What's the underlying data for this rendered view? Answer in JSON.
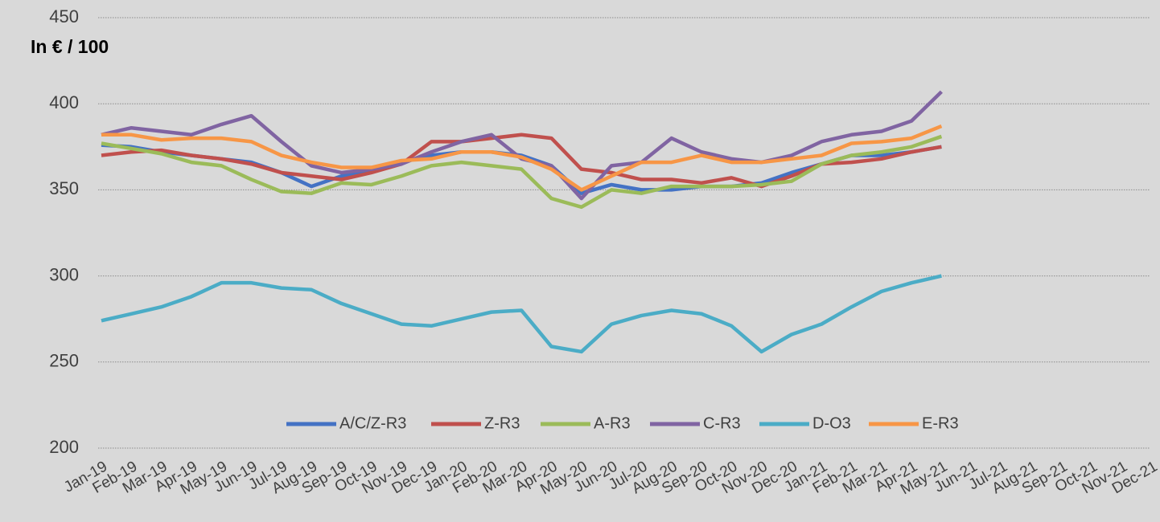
{
  "chart_data": {
    "type": "line",
    "y_label": "In € / 100",
    "categories": [
      "Jan-19",
      "Feb-19",
      "Mar-19",
      "Apr-19",
      "May-19",
      "Jun-19",
      "Jul-19",
      "Aug-19",
      "Sep-19",
      "Oct-19",
      "Nov-19",
      "Dec-19",
      "Jan-20",
      "Feb-20",
      "Mar-20",
      "Apr-20",
      "May-20",
      "Jun-20",
      "Jul-20",
      "Aug-20",
      "Sep-20",
      "Oct-20",
      "Nov-20",
      "Dec-20",
      "Jan-21",
      "Feb-21",
      "Mar-21",
      "Apr-21",
      "May-21",
      "Jun-21",
      "Jul-21",
      "Aug-21",
      "Sep-21",
      "Oct-21",
      "Nov-21",
      "Dec-21"
    ],
    "series": [
      {
        "name": "A/C/Z-R3",
        "color": "#4472c4",
        "values": [
          376,
          375,
          372,
          370,
          368,
          366,
          360,
          352,
          358,
          362,
          366,
          370,
          372,
          372,
          370,
          364,
          348,
          353,
          350,
          350,
          352,
          352,
          354,
          360,
          365,
          370,
          370,
          372,
          375,
          null,
          null,
          null,
          null,
          null,
          null,
          null
        ]
      },
      {
        "name": "Z-R3",
        "color": "#c0504d",
        "values": [
          370,
          372,
          373,
          370,
          368,
          365,
          360,
          358,
          356,
          360,
          365,
          378,
          378,
          380,
          382,
          380,
          362,
          360,
          356,
          356,
          354,
          357,
          352,
          358,
          365,
          366,
          368,
          372,
          375,
          null,
          null,
          null,
          null,
          null,
          null,
          null
        ]
      },
      {
        "name": "A-R3",
        "color": "#9bbb59",
        "values": [
          377,
          374,
          371,
          366,
          364,
          356,
          349,
          348,
          354,
          353,
          358,
          364,
          366,
          364,
          362,
          345,
          340,
          350,
          348,
          352,
          352,
          352,
          353,
          355,
          365,
          370,
          372,
          375,
          381,
          null,
          null,
          null,
          null,
          null,
          null,
          null
        ]
      },
      {
        "name": "C-R3",
        "color": "#8064a2",
        "values": [
          382,
          386,
          384,
          382,
          388,
          393,
          378,
          364,
          360,
          362,
          365,
          372,
          378,
          382,
          368,
          364,
          345,
          364,
          366,
          380,
          372,
          368,
          366,
          370,
          378,
          382,
          384,
          390,
          407,
          null,
          null,
          null,
          null,
          null,
          null,
          null
        ]
      },
      {
        "name": "D-O3",
        "color": "#4bacc6",
        "values": [
          274,
          278,
          282,
          288,
          296,
          296,
          293,
          292,
          284,
          278,
          272,
          271,
          275,
          279,
          280,
          259,
          256,
          272,
          277,
          280,
          278,
          271,
          256,
          266,
          272,
          282,
          291,
          296,
          300,
          null,
          null,
          null,
          null,
          null,
          null,
          null
        ]
      },
      {
        "name": "E-R3",
        "color": "#f79646",
        "values": [
          382,
          382,
          379,
          380,
          380,
          378,
          370,
          366,
          363,
          363,
          367,
          368,
          372,
          372,
          369,
          362,
          350,
          358,
          366,
          366,
          370,
          366,
          366,
          368,
          370,
          377,
          378,
          380,
          387,
          null,
          null,
          null,
          null,
          null,
          null,
          null
        ]
      }
    ],
    "ylim": [
      200,
      450
    ],
    "yticks": [
      200,
      250,
      300,
      350,
      400,
      450
    ],
    "grid": true,
    "legend": "bottom"
  }
}
